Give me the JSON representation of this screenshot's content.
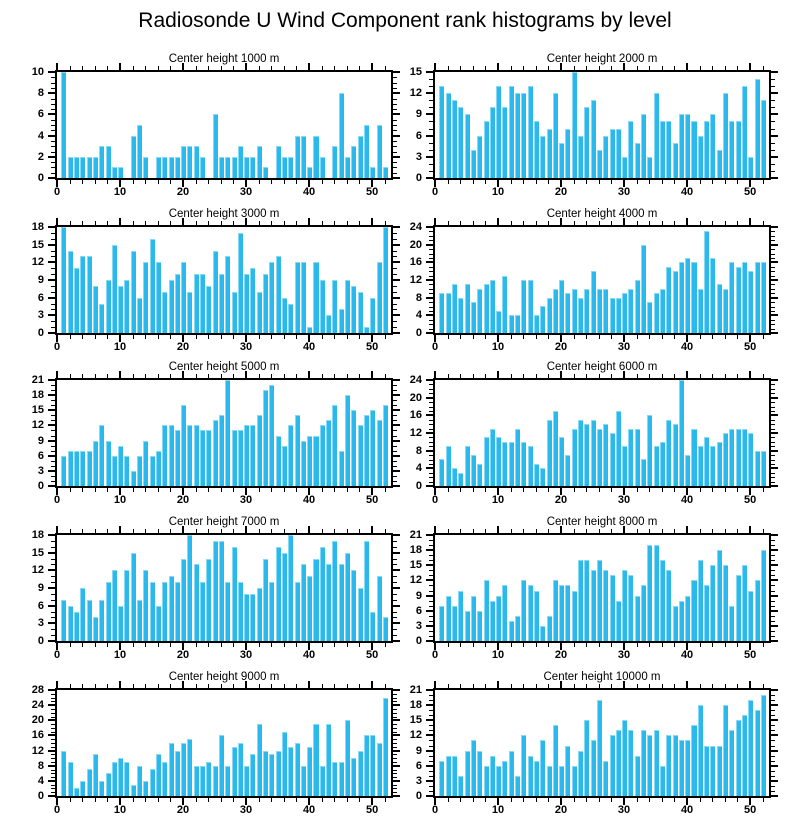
{
  "chart_data": {
    "type": "bar",
    "title": "Radiosonde U Wind Component rank histograms by level",
    "bar_color": "#29B9EC",
    "x_range": [
      0,
      53
    ],
    "x_ticks": [
      0,
      10,
      20,
      30,
      40,
      50
    ],
    "x_minor_step": 2,
    "n_bars": 52,
    "grid": "off",
    "legend": "none",
    "panels": [
      {
        "title": "Center height 1000 m",
        "ylim": [
          0,
          10
        ],
        "ystep": 2,
        "yminor": 0.5,
        "yticks": [
          0,
          2,
          4,
          6,
          8,
          10
        ],
        "values": [
          10,
          2,
          2,
          2,
          2,
          2,
          3,
          3,
          1,
          1,
          0,
          4,
          5,
          2,
          0,
          2,
          2,
          2,
          2,
          3,
          3,
          3,
          2,
          0,
          6,
          2,
          2,
          2,
          3,
          2,
          2,
          3,
          1,
          0,
          3,
          2,
          2,
          4,
          4,
          1,
          4,
          2,
          0,
          3,
          8,
          2,
          3,
          4,
          5,
          1,
          5,
          1
        ]
      },
      {
        "title": "Center height 2000 m",
        "ylim": [
          0,
          15
        ],
        "ystep": 3,
        "yminor": 1,
        "yticks": [
          0,
          3,
          6,
          9,
          12,
          15
        ],
        "values": [
          13,
          12,
          11,
          10,
          9,
          4,
          6,
          8,
          10,
          13,
          10,
          13,
          12,
          12,
          13,
          8,
          6,
          7,
          12,
          5,
          7,
          15,
          6,
          10,
          11,
          4,
          6,
          7,
          7,
          3,
          8,
          5,
          9,
          3,
          12,
          8,
          8,
          5,
          9,
          9,
          8,
          6,
          8,
          9,
          4,
          12,
          8,
          8,
          13,
          3,
          14,
          11
        ]
      },
      {
        "title": "Center height 3000 m",
        "ylim": [
          0,
          18
        ],
        "ystep": 3,
        "yminor": 1,
        "yticks": [
          0,
          3,
          6,
          9,
          12,
          15,
          18
        ],
        "values": [
          18,
          14,
          11,
          13,
          13,
          8,
          5,
          9,
          15,
          8,
          9,
          14,
          6,
          12,
          16,
          12,
          7,
          9,
          10,
          12,
          7,
          10,
          10,
          8,
          14,
          10,
          13,
          7,
          17,
          10,
          11,
          7,
          10,
          12,
          13,
          6,
          5,
          12,
          12,
          1,
          12,
          9,
          3,
          9,
          4,
          9,
          8,
          7,
          1,
          6,
          12,
          18
        ]
      },
      {
        "title": "Center height 4000 m",
        "ylim": [
          0,
          24
        ],
        "ystep": 4,
        "yminor": 1,
        "yticks": [
          0,
          4,
          8,
          12,
          16,
          20,
          24
        ],
        "values": [
          9,
          9,
          11,
          8,
          11,
          7,
          10,
          11,
          12,
          5,
          13,
          4,
          4,
          12,
          12,
          4,
          6,
          8,
          10,
          12,
          9,
          10,
          8,
          10,
          14,
          10,
          10,
          8,
          8,
          9,
          10,
          12,
          20,
          7,
          9,
          10,
          15,
          14,
          16,
          17,
          16,
          10,
          23,
          17,
          11,
          10,
          16,
          15,
          16,
          14,
          16,
          16
        ]
      },
      {
        "title": "Center height 5000 m",
        "ylim": [
          0,
          21
        ],
        "ystep": 3,
        "yminor": 1,
        "yticks": [
          0,
          3,
          6,
          9,
          12,
          15,
          18,
          21
        ],
        "values": [
          6,
          7,
          7,
          7,
          7,
          9,
          12,
          9,
          6,
          8,
          6,
          3,
          6,
          9,
          6,
          7,
          12,
          12,
          11,
          16,
          12,
          12,
          11,
          11,
          13,
          14,
          21,
          11,
          11,
          12,
          12,
          14,
          19,
          20,
          10,
          8,
          12,
          14,
          9,
          10,
          10,
          12,
          13,
          16,
          7,
          18,
          15,
          12,
          14,
          15,
          13,
          16
        ]
      },
      {
        "title": "Center height 6000 m",
        "ylim": [
          0,
          24
        ],
        "ystep": 4,
        "yminor": 1,
        "yticks": [
          0,
          4,
          8,
          12,
          16,
          20,
          24
        ],
        "values": [
          6,
          9,
          4,
          3,
          9,
          7,
          5,
          11,
          13,
          11,
          10,
          10,
          13,
          10,
          9,
          5,
          4,
          15,
          17,
          11,
          7,
          13,
          15,
          14,
          15,
          13,
          14,
          12,
          17,
          9,
          13,
          13,
          6,
          16,
          9,
          10,
          15,
          14,
          24,
          7,
          13,
          9,
          11,
          9,
          10,
          12,
          13,
          13,
          13,
          12,
          8,
          8
        ]
      },
      {
        "title": "Center height 7000 m",
        "ylim": [
          0,
          18
        ],
        "ystep": 3,
        "yminor": 1,
        "yticks": [
          0,
          3,
          6,
          9,
          12,
          15,
          18
        ],
        "values": [
          7,
          6,
          5,
          9,
          7,
          4,
          7,
          10,
          12,
          6,
          12,
          15,
          7,
          12,
          10,
          6,
          10,
          11,
          10,
          14,
          18,
          13,
          10,
          14,
          17,
          17,
          10,
          16,
          10,
          8,
          8,
          9,
          14,
          10,
          16,
          15,
          18,
          10,
          13,
          11,
          14,
          16,
          13,
          17,
          13,
          15,
          12,
          9,
          17,
          5,
          11,
          4
        ]
      },
      {
        "title": "Center height 8000 m",
        "ylim": [
          0,
          21
        ],
        "ystep": 3,
        "yminor": 1,
        "yticks": [
          0,
          3,
          6,
          9,
          12,
          15,
          18,
          21
        ],
        "values": [
          7,
          9,
          7,
          10,
          6,
          9,
          6,
          12,
          8,
          9,
          11,
          4,
          5,
          12,
          11,
          10,
          3,
          5,
          12,
          11,
          11,
          10,
          16,
          16,
          14,
          16,
          14,
          13,
          8,
          14,
          13,
          9,
          11,
          19,
          19,
          16,
          14,
          7,
          8,
          9,
          12,
          16,
          11,
          15,
          18,
          15,
          7,
          13,
          15,
          10,
          12,
          18
        ]
      },
      {
        "title": "Center height 9000 m",
        "ylim": [
          0,
          28
        ],
        "ystep": 4,
        "yminor": 1,
        "yticks": [
          0,
          4,
          8,
          12,
          16,
          20,
          24,
          28
        ],
        "values": [
          12,
          9,
          2,
          4,
          7,
          11,
          4,
          6,
          9,
          10,
          9,
          3,
          8,
          4,
          7,
          11,
          9,
          14,
          12,
          14,
          15,
          8,
          8,
          9,
          8,
          16,
          8,
          13,
          14,
          8,
          11,
          19,
          12,
          11,
          12,
          17,
          13,
          14,
          8,
          13,
          19,
          8,
          19,
          9,
          9,
          20,
          10,
          12,
          16,
          16,
          14,
          26
        ]
      },
      {
        "title": "Center height 10000 m",
        "ylim": [
          0,
          21
        ],
        "ystep": 3,
        "yminor": 1,
        "yticks": [
          0,
          3,
          6,
          9,
          12,
          15,
          18,
          21
        ],
        "values": [
          7,
          8,
          8,
          4,
          9,
          11,
          9,
          6,
          8,
          6,
          7,
          9,
          4,
          12,
          8,
          7,
          11,
          6,
          14,
          6,
          10,
          6,
          9,
          15,
          11,
          19,
          7,
          12,
          13,
          15,
          13,
          8,
          13,
          12,
          13,
          6,
          12,
          12,
          11,
          11,
          14,
          18,
          10,
          10,
          10,
          18,
          13,
          15,
          16,
          19,
          17,
          20
        ]
      }
    ]
  }
}
